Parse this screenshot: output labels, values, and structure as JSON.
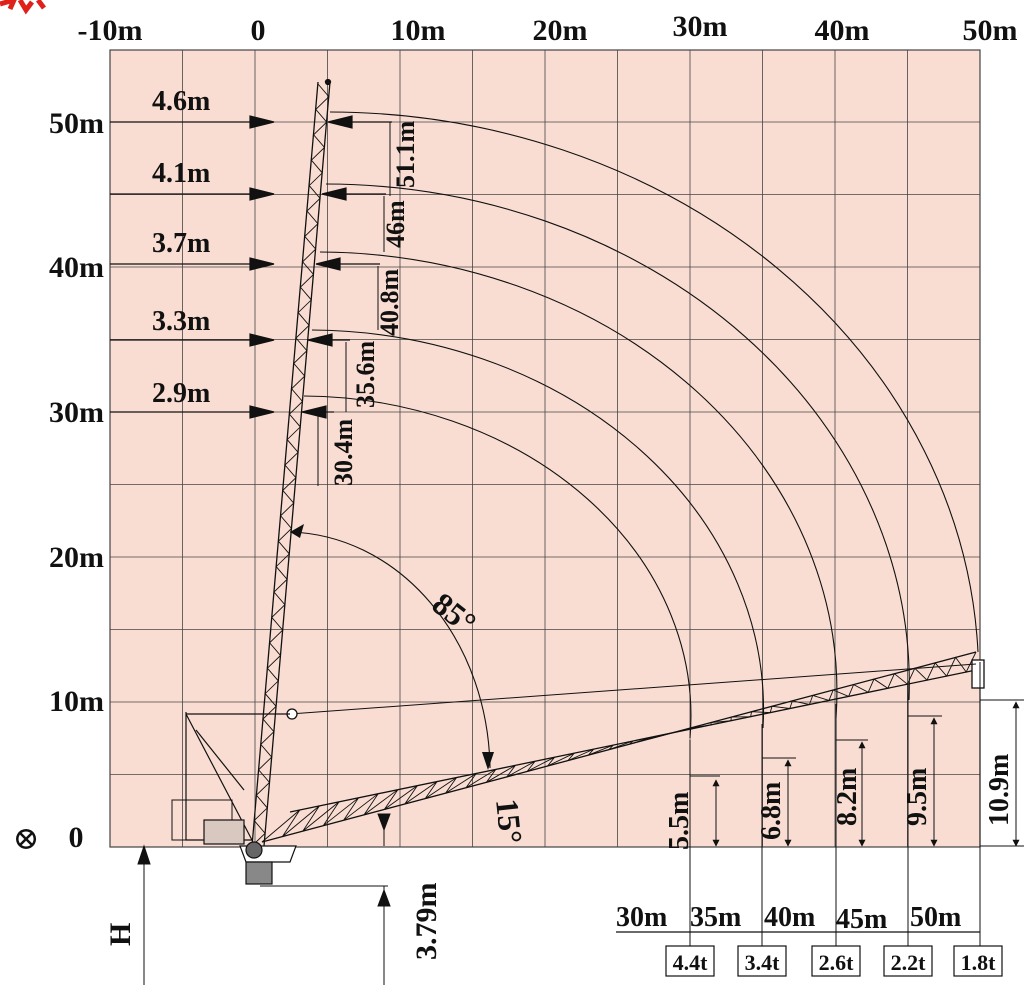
{
  "colors": {
    "plot_background": "#f9ddd2",
    "grid": "#444444",
    "line": "#111111",
    "corner_mark": "#e0201a"
  },
  "x_axis": {
    "labels": [
      "-10m",
      "0",
      "10m",
      "20m",
      "30m",
      "40m",
      "50m"
    ]
  },
  "y_axis": {
    "labels": [
      "50m",
      "40m",
      "30m",
      "20m",
      "10m",
      "0"
    ]
  },
  "origin_symbol": "⊗",
  "hook_radius_markers": [
    {
      "radius": "4.6m",
      "height": "51.1m"
    },
    {
      "radius": "4.1m",
      "height": "46m"
    },
    {
      "radius": "3.7m",
      "height": "40.8m"
    },
    {
      "radius": "3.3m",
      "height": "35.6m"
    },
    {
      "radius": "2.9m",
      "height": "30.4m"
    }
  ],
  "angles": {
    "max": "85°",
    "min": "15°"
  },
  "boom_heights": [
    "5.5m",
    "6.8m",
    "8.2m",
    "9.5m",
    "10.9m"
  ],
  "base": {
    "pivot_height": "3.79m",
    "H_label": "H"
  },
  "boom_capacity": [
    {
      "boom": "30m",
      "load": "4.4t"
    },
    {
      "boom": "35m",
      "load": "3.4t"
    },
    {
      "boom": "40m",
      "load": "2.6t"
    },
    {
      "boom": "45m",
      "load": "2.2t"
    },
    {
      "boom": "50m",
      "load": "1.8t"
    }
  ]
}
